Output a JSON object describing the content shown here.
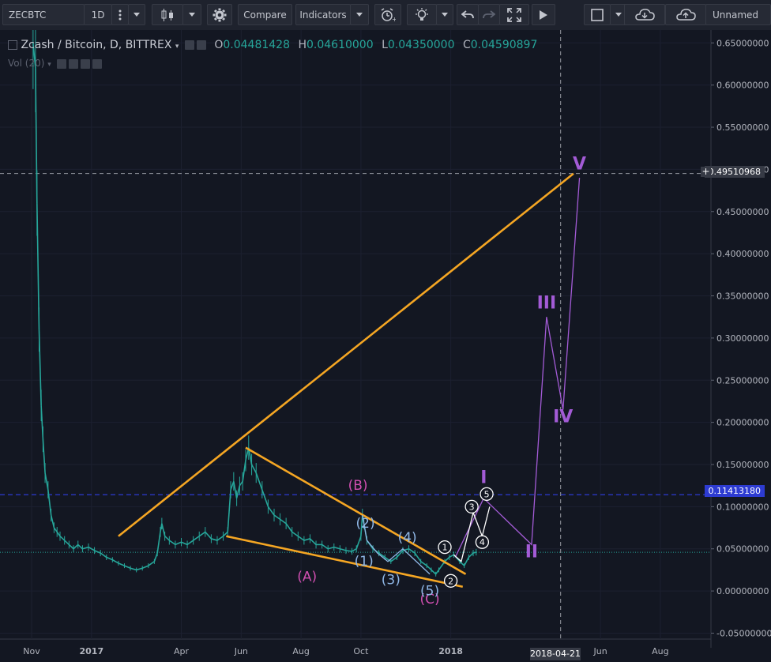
{
  "toolbar": {
    "symbol": "ZECBTC",
    "interval": "1D",
    "compare_label": "Compare",
    "indicators_label": "Indicators",
    "layout_name": "Unnamed"
  },
  "legend": {
    "title": "Zcash / Bitcoin, D, BITTREX",
    "open_label": "O",
    "open": "0.04481428",
    "high_label": "H",
    "high": "0.04610000",
    "low_label": "L",
    "low": "0.04350000",
    "close_label": "C",
    "close": "0.04590897",
    "volume_label": "Vol (20)"
  },
  "price_tags": {
    "cursor_price": "0.49510968",
    "level_price": "0.11413180"
  },
  "cursor_date": "2018-04-21",
  "colors": {
    "background": "#131722",
    "candle_up": "#26a69a",
    "trendline": "#f5a623",
    "wave_major": "#a35bd6",
    "wave_abc": "#d14fb1",
    "wave_minor": "#8fb7e6",
    "wave_white": "#ffffff",
    "level_line": "#2d3bd1"
  },
  "chart_data": {
    "type": "line",
    "y_axis_ticks": [
      "0.65000000",
      "0.60000000",
      "0.55000000",
      "0.50000000",
      "0.45000000",
      "0.40000000",
      "0.35000000",
      "0.30000000",
      "0.25000000",
      "0.20000000",
      "0.15000000",
      "0.10000000",
      "0.05000000",
      "0.00000000",
      "-0.05000000"
    ],
    "ylim": [
      -0.05,
      0.65
    ],
    "x_axis_ticks": [
      {
        "label": "Nov",
        "month": 0
      },
      {
        "label": "2017",
        "month": 2
      },
      {
        "label": "Apr",
        "month": 5
      },
      {
        "label": "Jun",
        "month": 7
      },
      {
        "label": "Aug",
        "month": 9
      },
      {
        "label": "Oct",
        "month": 11
      },
      {
        "label": "2018",
        "month": 14
      },
      {
        "label": "Jun",
        "month": 19
      },
      {
        "label": "Aug",
        "month": 21
      }
    ],
    "month_zero": "2016-11-01",
    "price_series": [
      [
        0.05,
        0.65
      ],
      [
        0.13,
        0.62
      ],
      [
        0.18,
        0.46
      ],
      [
        0.25,
        0.31
      ],
      [
        0.32,
        0.22
      ],
      [
        0.38,
        0.18
      ],
      [
        0.45,
        0.14
      ],
      [
        0.55,
        0.12
      ],
      [
        0.65,
        0.09
      ],
      [
        0.75,
        0.075
      ],
      [
        0.85,
        0.07
      ],
      [
        0.95,
        0.065
      ],
      [
        1.1,
        0.06
      ],
      [
        1.25,
        0.055
      ],
      [
        1.4,
        0.05
      ],
      [
        1.55,
        0.055
      ],
      [
        1.7,
        0.05
      ],
      [
        1.9,
        0.052
      ],
      [
        2.1,
        0.048
      ],
      [
        2.3,
        0.045
      ],
      [
        2.5,
        0.04
      ],
      [
        2.7,
        0.037
      ],
      [
        2.9,
        0.033
      ],
      [
        3.1,
        0.03
      ],
      [
        3.3,
        0.027
      ],
      [
        3.5,
        0.025
      ],
      [
        3.7,
        0.027
      ],
      [
        3.9,
        0.03
      ],
      [
        4.1,
        0.035
      ],
      [
        4.2,
        0.045
      ],
      [
        4.3,
        0.07
      ],
      [
        4.35,
        0.08
      ],
      [
        4.45,
        0.065
      ],
      [
        4.6,
        0.06
      ],
      [
        4.8,
        0.055
      ],
      [
        5.0,
        0.058
      ],
      [
        5.2,
        0.055
      ],
      [
        5.4,
        0.06
      ],
      [
        5.6,
        0.065
      ],
      [
        5.8,
        0.07
      ],
      [
        6.0,
        0.062
      ],
      [
        6.2,
        0.06
      ],
      [
        6.4,
        0.065
      ],
      [
        6.55,
        0.07
      ],
      [
        6.65,
        0.12
      ],
      [
        6.75,
        0.13
      ],
      [
        6.85,
        0.11
      ],
      [
        6.95,
        0.125
      ],
      [
        7.05,
        0.13
      ],
      [
        7.15,
        0.155
      ],
      [
        7.25,
        0.17
      ],
      [
        7.35,
        0.15
      ],
      [
        7.5,
        0.14
      ],
      [
        7.7,
        0.12
      ],
      [
        7.9,
        0.1
      ],
      [
        8.1,
        0.09
      ],
      [
        8.3,
        0.085
      ],
      [
        8.5,
        0.08
      ],
      [
        8.7,
        0.07
      ],
      [
        8.9,
        0.065
      ],
      [
        9.1,
        0.06
      ],
      [
        9.3,
        0.062
      ],
      [
        9.5,
        0.055
      ],
      [
        9.7,
        0.055
      ],
      [
        9.9,
        0.05
      ],
      [
        10.1,
        0.052
      ],
      [
        10.3,
        0.05
      ],
      [
        10.5,
        0.048
      ],
      [
        10.7,
        0.047
      ],
      [
        10.85,
        0.05
      ],
      [
        11.0,
        0.065
      ],
      [
        11.05,
        0.09
      ],
      [
        11.1,
        0.08
      ],
      [
        11.2,
        0.06
      ],
      [
        11.4,
        0.05
      ],
      [
        11.6,
        0.045
      ],
      [
        11.8,
        0.04
      ],
      [
        12.0,
        0.035
      ],
      [
        12.2,
        0.04
      ],
      [
        12.4,
        0.048
      ],
      [
        12.6,
        0.05
      ],
      [
        12.8,
        0.045
      ],
      [
        13.0,
        0.035
      ],
      [
        13.2,
        0.03
      ],
      [
        13.35,
        0.025
      ],
      [
        13.5,
        0.02
      ],
      [
        13.6,
        0.025
      ],
      [
        13.8,
        0.035
      ],
      [
        13.95,
        0.04
      ],
      [
        14.1,
        0.043
      ],
      [
        14.3,
        0.035
      ],
      [
        14.45,
        0.03
      ],
      [
        14.6,
        0.04
      ],
      [
        14.75,
        0.045
      ],
      [
        14.85,
        0.046
      ]
    ],
    "trendlines": [
      {
        "x1": 2.9,
        "y1": 0.065,
        "x2": 18.1,
        "y2": 0.495
      },
      {
        "x1": 7.15,
        "y1": 0.17,
        "x2": 14.5,
        "y2": 0.02
      },
      {
        "x1": 6.5,
        "y1": 0.065,
        "x2": 14.4,
        "y2": 0.005
      }
    ],
    "major_wave_path": [
      [
        14.15,
        0.04
      ],
      [
        15.1,
        0.11
      ],
      [
        16.7,
        0.055
      ],
      [
        17.2,
        0.325
      ],
      [
        17.75,
        0.215
      ],
      [
        18.3,
        0.49
      ]
    ],
    "major_wave_labels": [
      {
        "text": "I",
        "x": 15.1,
        "y": 0.128
      },
      {
        "text": "II",
        "x": 16.7,
        "y": 0.04
      },
      {
        "text": "III",
        "x": 17.2,
        "y": 0.335
      },
      {
        "text": "IV",
        "x": 17.75,
        "y": 0.2
      },
      {
        "text": "V",
        "x": 18.3,
        "y": 0.5
      }
    ],
    "minor_wave_path": [
      [
        14.1,
        0.043
      ],
      [
        14.35,
        0.035
      ],
      [
        14.75,
        0.093
      ],
      [
        15.05,
        0.065
      ],
      [
        15.3,
        0.1
      ]
    ],
    "minor_wave_labels": [
      {
        "text": "1",
        "x": 13.8,
        "y": 0.052
      },
      {
        "text": "2",
        "x": 14.0,
        "y": 0.012
      },
      {
        "text": "3",
        "x": 14.7,
        "y": 0.1
      },
      {
        "text": "4",
        "x": 15.05,
        "y": 0.058
      },
      {
        "text": "5",
        "x": 15.2,
        "y": 0.115
      }
    ],
    "abc_labels": [
      {
        "text": "(A)",
        "x": 9.2,
        "y": 0.012
      },
      {
        "text": "(B)",
        "x": 10.9,
        "y": 0.12
      },
      {
        "text": "(C)",
        "x": 13.3,
        "y": -0.015
      }
    ],
    "sub_wave_path": [
      [
        11.05,
        0.09
      ],
      [
        11.2,
        0.06
      ],
      [
        11.55,
        0.045
      ],
      [
        11.9,
        0.035
      ],
      [
        12.4,
        0.05
      ],
      [
        12.85,
        0.035
      ],
      [
        13.3,
        0.02
      ]
    ],
    "sub_wave_labels": [
      {
        "text": "(1)",
        "x": 11.1,
        "y": 0.03
      },
      {
        "text": "(2)",
        "x": 11.15,
        "y": 0.075
      },
      {
        "text": "(3)",
        "x": 12.0,
        "y": 0.008
      },
      {
        "text": "(4)",
        "x": 12.55,
        "y": 0.058
      },
      {
        "text": "(5)",
        "x": 13.3,
        "y": -0.005
      }
    ],
    "horizontal_levels": [
      0.1141318,
      0.0459
    ],
    "cursor": {
      "price": 0.49510968,
      "month": 17.67
    }
  }
}
